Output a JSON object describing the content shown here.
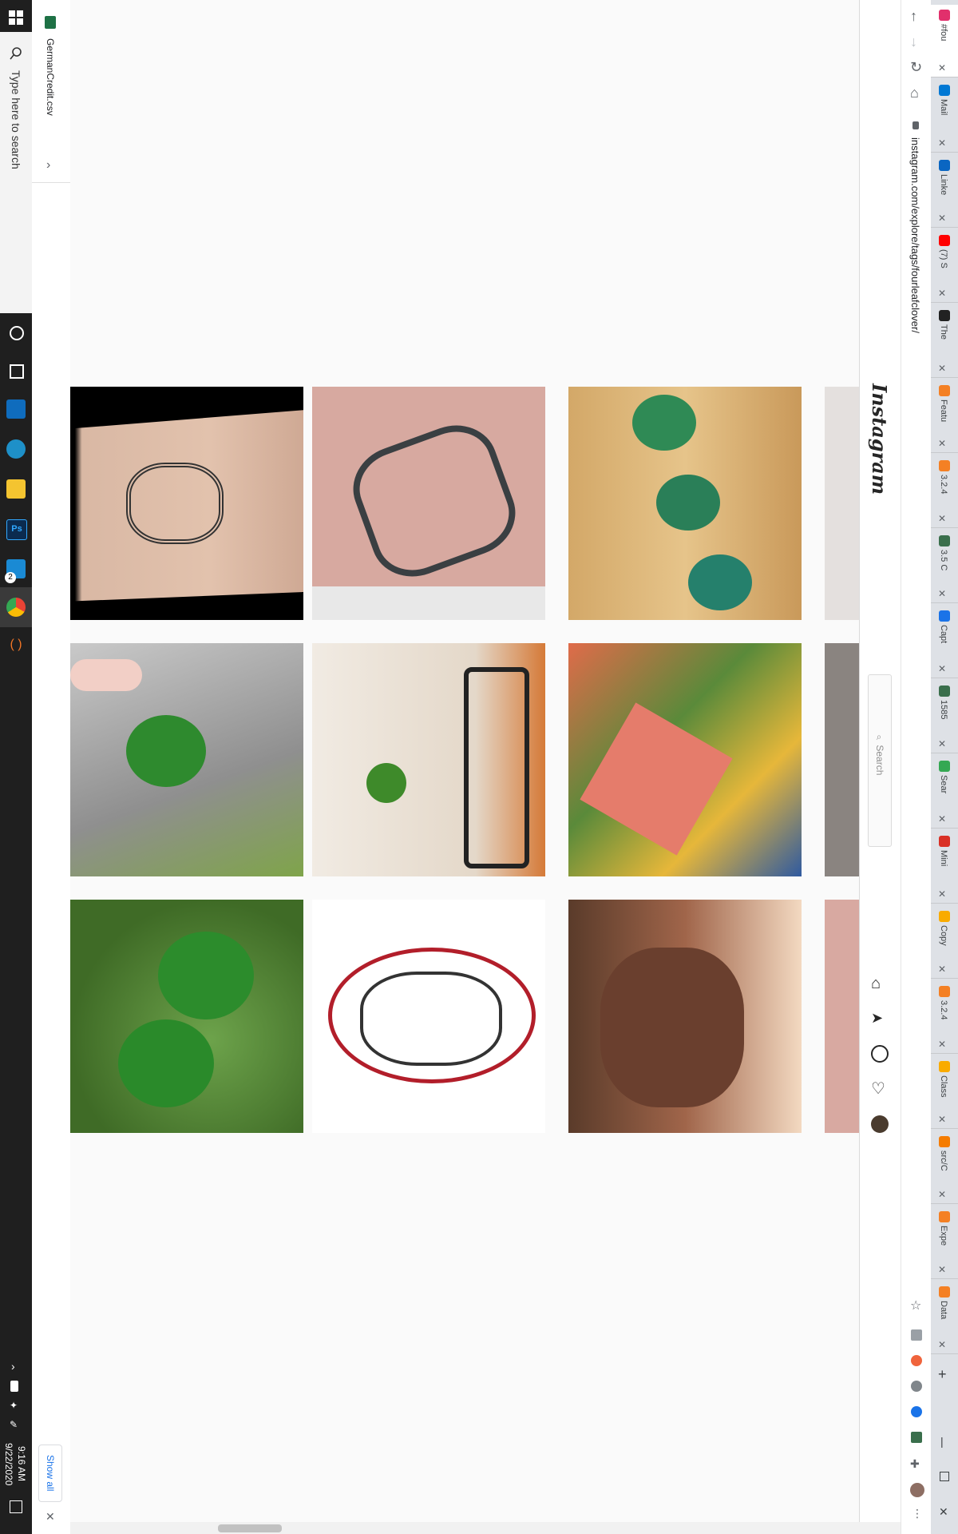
{
  "taskbar": {
    "search_placeholder": "Type here to search",
    "time": "9:16 AM",
    "date": "9/22/2020",
    "app_badge": "2"
  },
  "downloads": {
    "file_name": "GermanCredit.csv",
    "show_all": "Show all"
  },
  "browser": {
    "url": "instagram.com/explore/tags/fourleafclover/",
    "tabs": [
      {
        "label": "#fou",
        "color": "#e1306c"
      },
      {
        "label": "Mail",
        "color": "#0078d4"
      },
      {
        "label": "Linke",
        "color": "#0a66c2"
      },
      {
        "label": "(7) S",
        "color": "#ff0000"
      },
      {
        "label": "The",
        "color": "#222222"
      },
      {
        "label": "Featu",
        "color": "#f48024"
      },
      {
        "label": "3.2.4",
        "color": "#f48024"
      },
      {
        "label": "3.5 C",
        "color": "#3a6f4c"
      },
      {
        "label": "Capt",
        "color": "#1a73e8"
      },
      {
        "label": "1585",
        "color": "#3a6f4c"
      },
      {
        "label": "Sear",
        "color": "#34a853"
      },
      {
        "label": "Mini",
        "color": "#d93025"
      },
      {
        "label": "Copy",
        "color": "#f9ab00"
      },
      {
        "label": "3.2.4",
        "color": "#f48024"
      },
      {
        "label": "Class",
        "color": "#f9ab00"
      },
      {
        "label": "src/C",
        "color": "#f57c00"
      },
      {
        "label": "Expe",
        "color": "#f48024"
      },
      {
        "label": "Data",
        "color": "#f48024"
      }
    ]
  },
  "instagram": {
    "logo": "Instagram",
    "search_placeholder": "Search"
  }
}
